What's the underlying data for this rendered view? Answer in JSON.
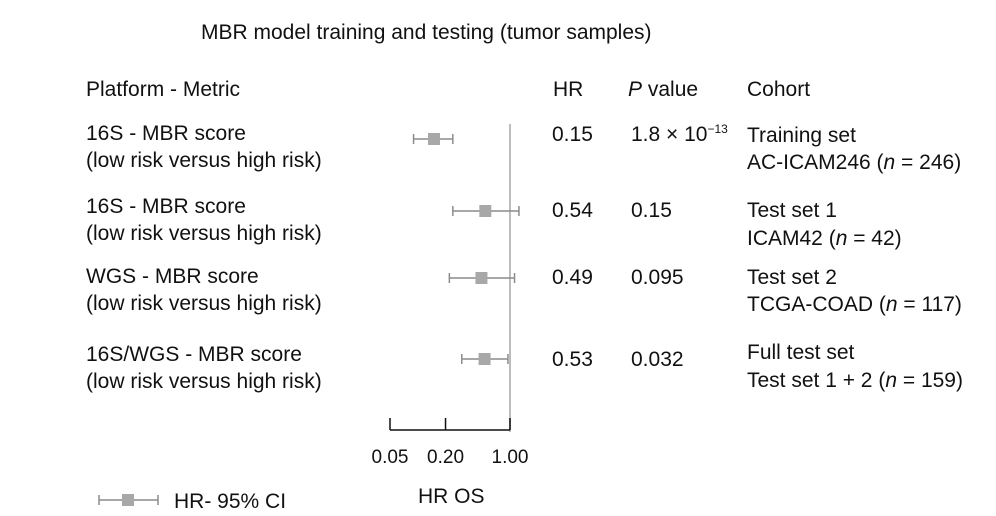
{
  "chart_data": {
    "type": "forest",
    "title": "MBR model training and testing (tumor samples)",
    "columns": {
      "label": "Platform - Metric",
      "hr": "HR",
      "p_italic": "P",
      "p_rest": " value",
      "cohort": "Cohort"
    },
    "x_axis": {
      "label": "HR OS",
      "scale": "log",
      "ticks": [
        0.05,
        0.2,
        1.0
      ],
      "tick_labels": [
        "0.05",
        "0.20",
        "1.00"
      ],
      "reference_line": 1.0
    },
    "legend": {
      "label": "HR- 95% CI",
      "position": "bottom-left"
    },
    "marker_color": "#a8a8a8",
    "rows": [
      {
        "label_line1": "16S - MBR score",
        "label_line2": "(low risk versus high risk)",
        "hr": 0.15,
        "ci_low": 0.09,
        "ci_high": 0.24,
        "hr_text": "0.15",
        "p_text": "1.8 × 10",
        "p_exp": "−13",
        "cohort_line1": "Training set",
        "cohort_pre": "AC-ICAM246 (",
        "cohort_n": "n",
        "cohort_post": " = 246)"
      },
      {
        "label_line1": "16S - MBR score",
        "label_line2": "(low risk versus high risk)",
        "hr": 0.54,
        "ci_low": 0.24,
        "ci_high": 1.25,
        "hr_text": "0.54",
        "p_text": "0.15",
        "p_exp": "",
        "cohort_line1": "Test set 1",
        "cohort_pre": "ICAM42 (",
        "cohort_n": "n",
        "cohort_post": " = 42)"
      },
      {
        "label_line1": "WGS - MBR score",
        "label_line2": "(low risk versus high risk)",
        "hr": 0.49,
        "ci_low": 0.22,
        "ci_high": 1.12,
        "hr_text": "0.49",
        "p_text": "0.095",
        "p_exp": "",
        "cohort_line1": "Test set 2",
        "cohort_pre": "TCGA-COAD (",
        "cohort_n": "n",
        "cohort_post": " = 117)"
      },
      {
        "label_line1": "16S/WGS - MBR score",
        "label_line2": "(low risk versus high risk)",
        "hr": 0.53,
        "ci_low": 0.3,
        "ci_high": 0.95,
        "hr_text": "0.53",
        "p_text": "0.032",
        "p_exp": "",
        "cohort_line1": "Full test set",
        "cohort_pre": "Test set 1 + 2 (",
        "cohort_n": "n",
        "cohort_post": " = 159)"
      }
    ]
  }
}
